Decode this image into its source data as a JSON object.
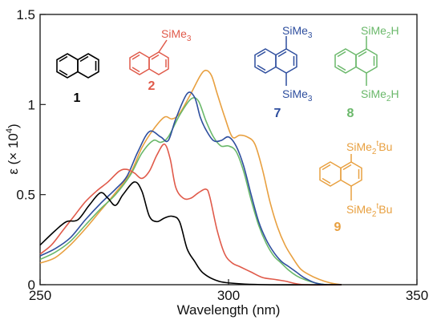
{
  "chart_data": {
    "type": "line",
    "xlabel": "Wavelength (nm)",
    "ylabel": "ε (× 10⁴)",
    "ylabel_parts": {
      "main": "ε (× 10",
      "sup": "4",
      "close": ")"
    },
    "xlim": [
      250,
      350
    ],
    "ylim": [
      0,
      1.5
    ],
    "x_ticks": [
      250,
      300,
      350
    ],
    "y_ticks": [
      0,
      0.5,
      1,
      1.5
    ],
    "x_tick_labels": [
      "250",
      "300",
      "350"
    ],
    "y_tick_labels": [
      "0",
      "0.5",
      "1",
      "1.5"
    ],
    "grid": false,
    "series": [
      {
        "name": "1",
        "color": "#000000",
        "points": [
          [
            250,
            0.22
          ],
          [
            254,
            0.3
          ],
          [
            257,
            0.35
          ],
          [
            260,
            0.36
          ],
          [
            263,
            0.44
          ],
          [
            266,
            0.51
          ],
          [
            268,
            0.48
          ],
          [
            270,
            0.44
          ],
          [
            272,
            0.5
          ],
          [
            275,
            0.57
          ],
          [
            277,
            0.52
          ],
          [
            279,
            0.38
          ],
          [
            281,
            0.35
          ],
          [
            283,
            0.37
          ],
          [
            285,
            0.38
          ],
          [
            287,
            0.35
          ],
          [
            289,
            0.2
          ],
          [
            291,
            0.13
          ],
          [
            293,
            0.07
          ],
          [
            296,
            0.03
          ],
          [
            300,
            0.01
          ],
          [
            310,
            0.0
          ],
          [
            330,
            0.0
          ]
        ]
      },
      {
        "name": "2",
        "color": "#e05a4a",
        "points": [
          [
            250,
            0.17
          ],
          [
            253,
            0.22
          ],
          [
            256,
            0.3
          ],
          [
            259,
            0.38
          ],
          [
            262,
            0.46
          ],
          [
            265,
            0.52
          ],
          [
            268,
            0.57
          ],
          [
            271,
            0.63
          ],
          [
            273,
            0.64
          ],
          [
            275,
            0.62
          ],
          [
            277,
            0.59
          ],
          [
            279,
            0.63
          ],
          [
            281,
            0.72
          ],
          [
            283,
            0.78
          ],
          [
            284.5,
            0.7
          ],
          [
            286,
            0.54
          ],
          [
            288,
            0.48
          ],
          [
            290,
            0.48
          ],
          [
            292,
            0.51
          ],
          [
            294,
            0.53
          ],
          [
            295,
            0.49
          ],
          [
            297,
            0.3
          ],
          [
            299,
            0.17
          ],
          [
            301,
            0.12
          ],
          [
            303,
            0.1
          ],
          [
            306,
            0.07
          ],
          [
            309,
            0.04
          ],
          [
            312,
            0.03
          ],
          [
            315,
            0.02
          ],
          [
            320,
            0.0
          ],
          [
            330,
            0.0
          ]
        ]
      },
      {
        "name": "7",
        "color": "#2e4e9e",
        "points": [
          [
            250,
            0.16
          ],
          [
            254,
            0.2
          ],
          [
            258,
            0.26
          ],
          [
            262,
            0.36
          ],
          [
            266,
            0.45
          ],
          [
            270,
            0.53
          ],
          [
            273,
            0.6
          ],
          [
            276,
            0.74
          ],
          [
            279,
            0.85
          ],
          [
            282,
            0.82
          ],
          [
            284,
            0.8
          ],
          [
            286,
            0.92
          ],
          [
            289,
            1.06
          ],
          [
            291,
            1.04
          ],
          [
            292.5,
            0.93
          ],
          [
            294,
            0.86
          ],
          [
            296,
            0.8
          ],
          [
            298,
            0.8
          ],
          [
            300,
            0.82
          ],
          [
            302,
            0.77
          ],
          [
            304,
            0.66
          ],
          [
            306,
            0.5
          ],
          [
            308,
            0.35
          ],
          [
            310,
            0.25
          ],
          [
            312,
            0.18
          ],
          [
            314,
            0.13
          ],
          [
            316,
            0.1
          ],
          [
            318,
            0.07
          ],
          [
            320,
            0.04
          ],
          [
            323,
            0.01
          ],
          [
            326,
            0.0
          ],
          [
            330,
            0.0
          ]
        ]
      },
      {
        "name": "8",
        "color": "#6ab86a",
        "points": [
          [
            250,
            0.14
          ],
          [
            254,
            0.18
          ],
          [
            258,
            0.24
          ],
          [
            262,
            0.33
          ],
          [
            266,
            0.42
          ],
          [
            270,
            0.5
          ],
          [
            274,
            0.61
          ],
          [
            277,
            0.73
          ],
          [
            280,
            0.8
          ],
          [
            282,
            0.79
          ],
          [
            284,
            0.82
          ],
          [
            287,
            0.94
          ],
          [
            290,
            1.03
          ],
          [
            292,
            1.02
          ],
          [
            294,
            0.91
          ],
          [
            296,
            0.82
          ],
          [
            298,
            0.77
          ],
          [
            300,
            0.77
          ],
          [
            302,
            0.74
          ],
          [
            304,
            0.63
          ],
          [
            306,
            0.47
          ],
          [
            308,
            0.33
          ],
          [
            310,
            0.23
          ],
          [
            312,
            0.16
          ],
          [
            314,
            0.12
          ],
          [
            316,
            0.08
          ],
          [
            318,
            0.05
          ],
          [
            320,
            0.03
          ],
          [
            323,
            0.01
          ],
          [
            326,
            0.0
          ],
          [
            330,
            0.0
          ]
        ]
      },
      {
        "name": "9",
        "color": "#e8a040",
        "points": [
          [
            250,
            0.12
          ],
          [
            254,
            0.15
          ],
          [
            258,
            0.22
          ],
          [
            262,
            0.31
          ],
          [
            266,
            0.41
          ],
          [
            270,
            0.51
          ],
          [
            274,
            0.62
          ],
          [
            277,
            0.76
          ],
          [
            280,
            0.86
          ],
          [
            283,
            0.93
          ],
          [
            285,
            0.92
          ],
          [
            287,
            0.95
          ],
          [
            290,
            1.06
          ],
          [
            292.5,
            1.16
          ],
          [
            294,
            1.19
          ],
          [
            295.5,
            1.16
          ],
          [
            297,
            1.06
          ],
          [
            299,
            0.93
          ],
          [
            301,
            0.82
          ],
          [
            303,
            0.83
          ],
          [
            305,
            0.82
          ],
          [
            307,
            0.78
          ],
          [
            309,
            0.64
          ],
          [
            311,
            0.46
          ],
          [
            313,
            0.32
          ],
          [
            315,
            0.22
          ],
          [
            317,
            0.15
          ],
          [
            319,
            0.09
          ],
          [
            321,
            0.06
          ],
          [
            324,
            0.03
          ],
          [
            327,
            0.01
          ],
          [
            330,
            0.0
          ]
        ]
      }
    ]
  },
  "compounds": [
    {
      "number": "1",
      "color": "#000000",
      "substituents": []
    },
    {
      "number": "2",
      "color": "#e05a4a",
      "substituents": [
        {
          "text": "SiMe",
          "sub": "3",
          "tail": ""
        }
      ]
    },
    {
      "number": "7",
      "color": "#2e4e9e",
      "substituents": [
        {
          "text": "SiMe",
          "sub": "3",
          "tail": ""
        },
        {
          "text": "SiMe",
          "sub": "3",
          "tail": ""
        }
      ]
    },
    {
      "number": "8",
      "color": "#6ab86a",
      "substituents": [
        {
          "text": "SiMe",
          "sub": "2",
          "tail": "H"
        },
        {
          "text": "SiMe",
          "sub": "2",
          "tail": "H"
        }
      ]
    },
    {
      "number": "9",
      "color": "#e8a040",
      "substituents": [
        {
          "text": "SiMe",
          "sub": "2",
          "sup": "t",
          "tail": "Bu"
        },
        {
          "text": "SiMe",
          "sub": "2",
          "sup": "t",
          "tail": "Bu"
        }
      ]
    }
  ]
}
